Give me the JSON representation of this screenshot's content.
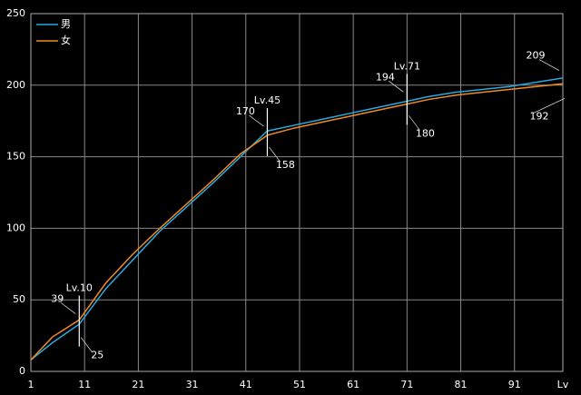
{
  "chart_data": {
    "type": "line",
    "x": [
      1,
      5,
      10,
      15,
      20,
      25,
      30,
      35,
      40,
      45,
      50,
      55,
      60,
      65,
      70,
      75,
      80,
      85,
      90,
      95,
      100
    ],
    "series": [
      {
        "name": "男",
        "color": "#29a8e0",
        "values": [
          8,
          20,
          33,
          58,
          78,
          98,
          115,
          132,
          150,
          168,
          172,
          176,
          180,
          184,
          188,
          192,
          195,
          197,
          199,
          202,
          205
        ]
      },
      {
        "name": "女",
        "color": "#f08a24",
        "values": [
          8,
          24,
          36,
          62,
          82,
          100,
          117,
          134,
          152,
          165,
          170,
          174,
          178,
          182,
          186,
          190,
          193,
          195,
          197,
          199,
          201
        ]
      }
    ],
    "xlim": [
      1,
      100
    ],
    "ylim": [
      0,
      250
    ],
    "xticks": [
      1,
      11,
      21,
      31,
      41,
      51,
      61,
      71,
      81,
      91
    ],
    "yticks": [
      0,
      50,
      100,
      150,
      200,
      250
    ],
    "x_label": "Lv",
    "grid": true,
    "legend": "upper left",
    "annotations": [
      {
        "label": "Lv.10",
        "x": 10,
        "high": 39,
        "low": 25
      },
      {
        "label": "Lv.45",
        "x": 45,
        "high": 170,
        "low": 158
      },
      {
        "label": "Lv.71",
        "x": 71,
        "high": 194,
        "low": 180
      },
      {
        "x": 100,
        "high": 209,
        "low": 192
      }
    ]
  }
}
